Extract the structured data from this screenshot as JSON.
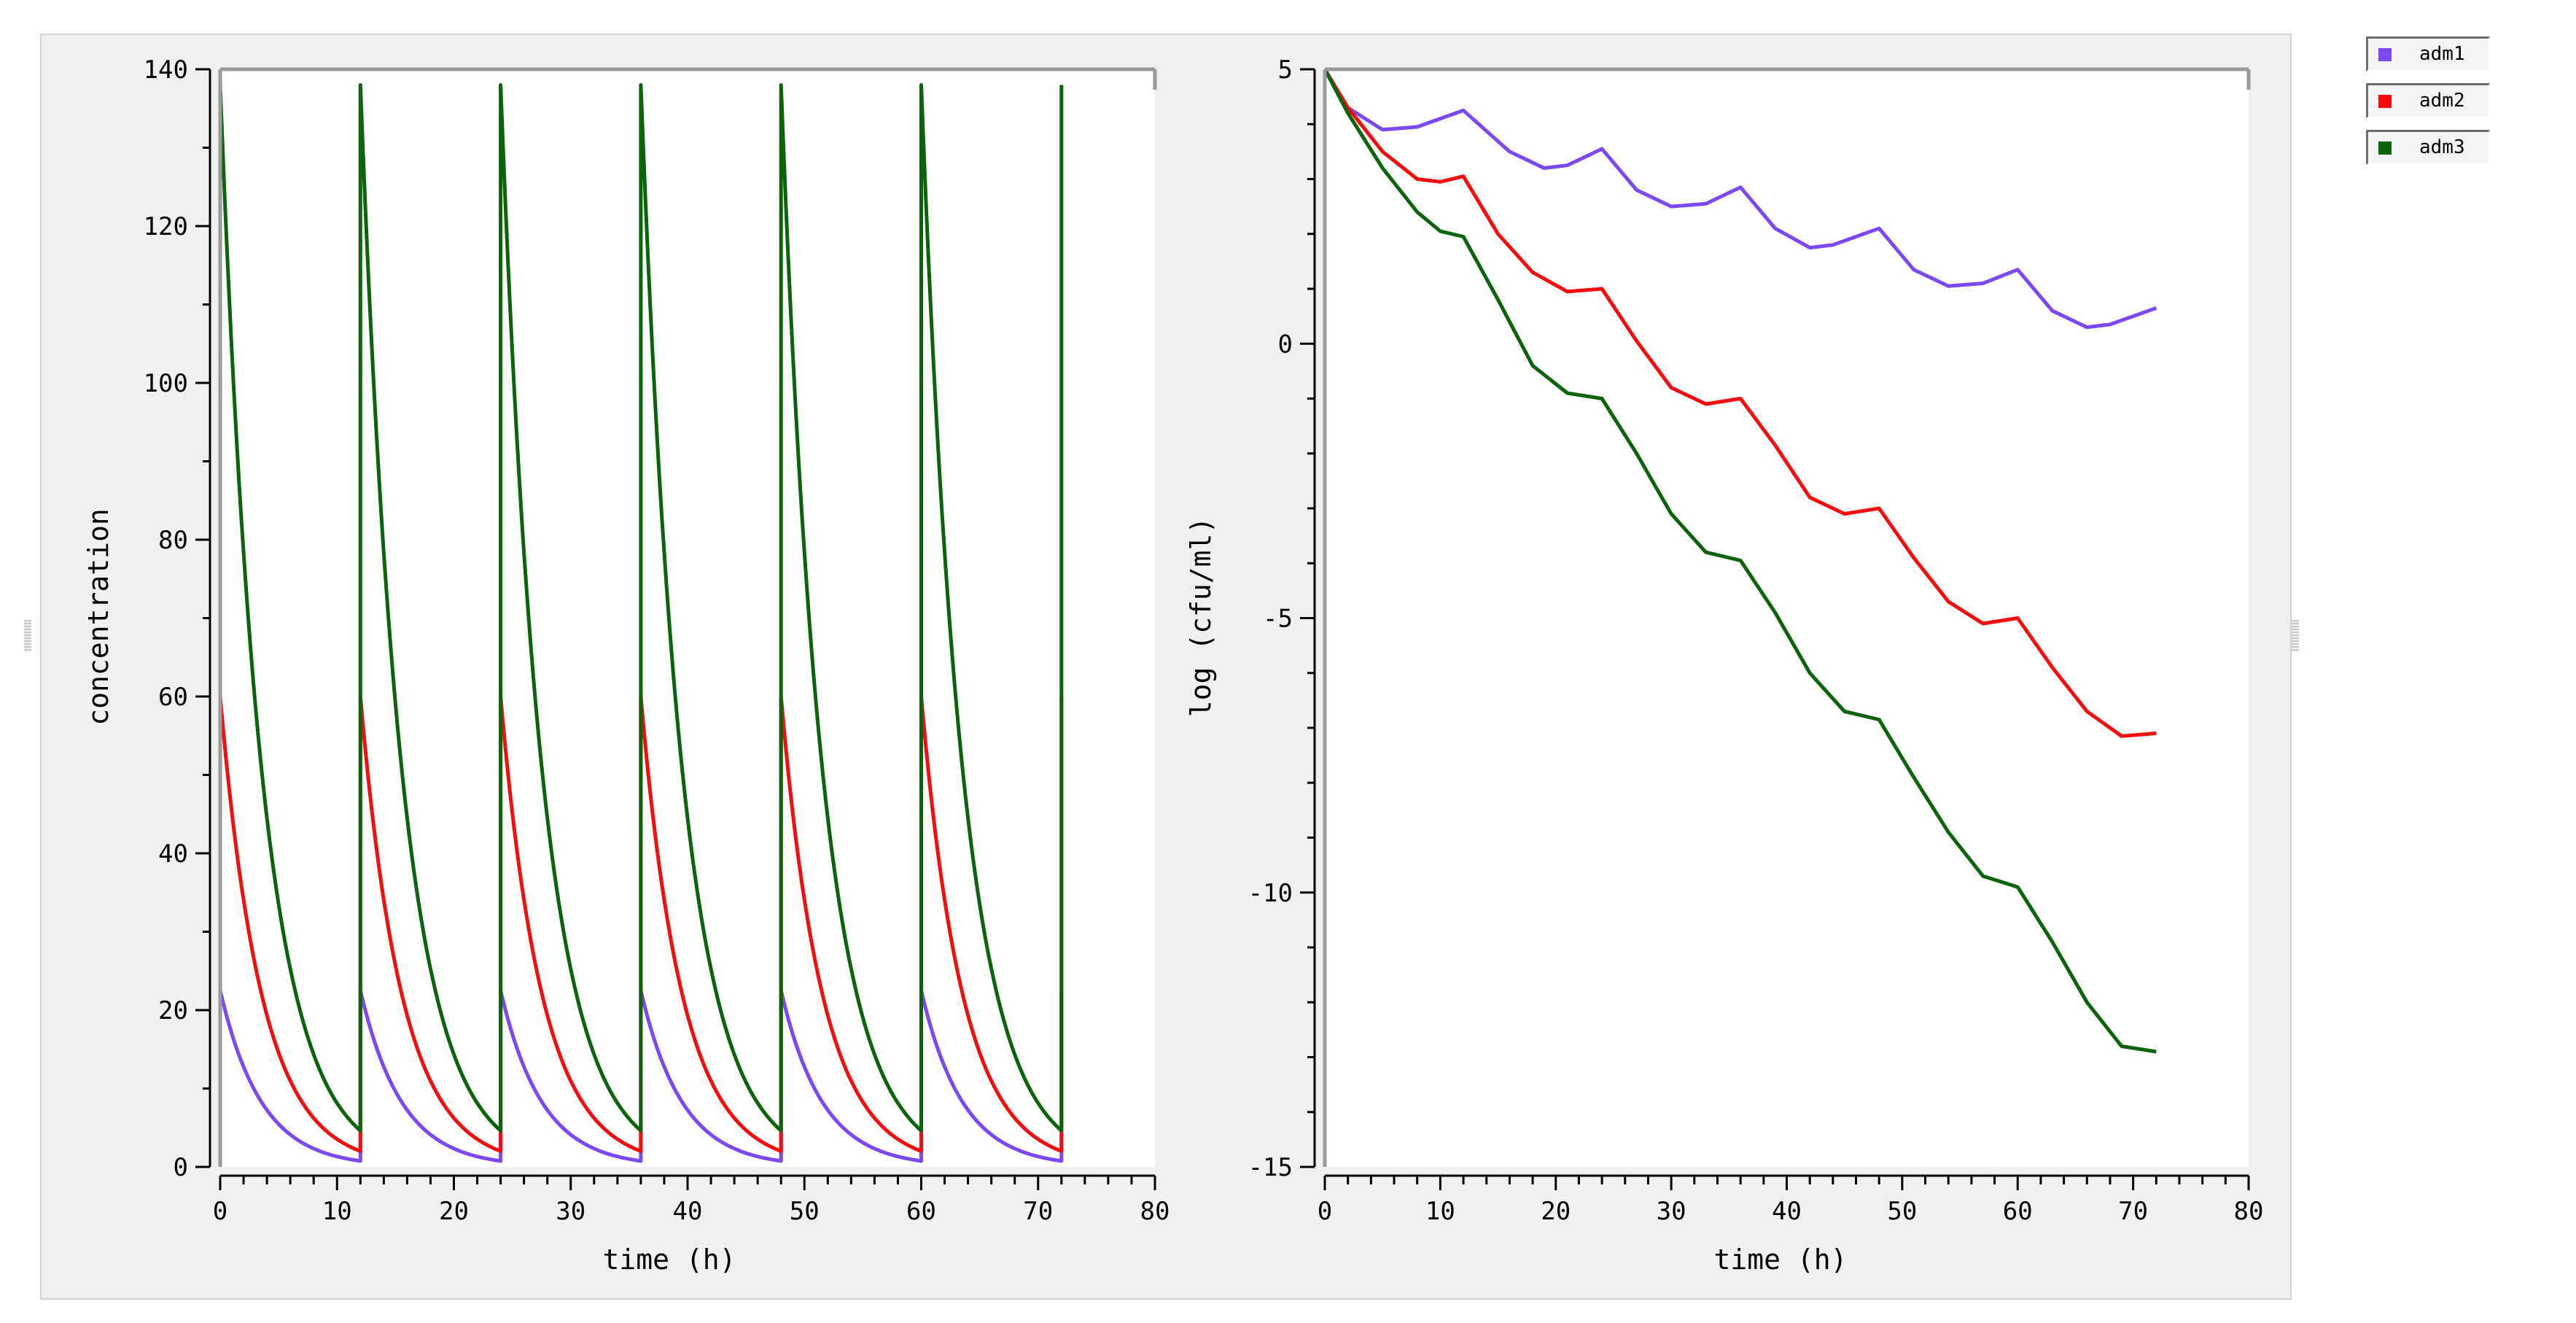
{
  "colors": {
    "adm1": "#7a48f5",
    "adm2": "#f50d0d",
    "adm3": "#0b630b",
    "panel_bg": "#f0f0f0",
    "plot_bg": "#ffffff",
    "frame": "#9a9a9a"
  },
  "legend": {
    "items": [
      {
        "key": "adm1",
        "label": "adm1",
        "color": "#7a48f5"
      },
      {
        "key": "adm2",
        "label": "adm2",
        "color": "#f50d0d"
      },
      {
        "key": "adm3",
        "label": "adm3",
        "color": "#0b630b"
      }
    ]
  },
  "chart_data": [
    {
      "type": "line",
      "title": "",
      "xlabel": "time (h)",
      "ylabel": "concentration",
      "xlim": [
        0,
        80
      ],
      "ylim": [
        0,
        140
      ],
      "xticks": [
        0,
        10,
        20,
        30,
        40,
        50,
        60,
        70,
        80
      ],
      "yticks": [
        0,
        20,
        40,
        60,
        80,
        100,
        120,
        140
      ],
      "grid": false,
      "dosing": {
        "interval_h": 12,
        "doses": 6,
        "end_h": 72,
        "decay_rate_per_h": 0.283
      },
      "series": [
        {
          "name": "adm1",
          "color": "#7a48f5",
          "peak": 22.5,
          "trough": 0.75
        },
        {
          "name": "adm2",
          "color": "#f50d0d",
          "peak": 60,
          "trough": 2
        },
        {
          "name": "adm3",
          "color": "#0b630b",
          "peak": 138,
          "trough": 4.6
        }
      ]
    },
    {
      "type": "line",
      "title": "",
      "xlabel": "time (h)",
      "ylabel": "log (cfu/ml)",
      "xlim": [
        0,
        80
      ],
      "ylim": [
        -15,
        5
      ],
      "xticks": [
        0,
        10,
        20,
        30,
        40,
        50,
        60,
        70,
        80
      ],
      "yticks": [
        -15,
        -10,
        -5,
        0,
        5
      ],
      "grid": false,
      "series": [
        {
          "name": "adm1",
          "color": "#7a48f5",
          "x": [
            0,
            2,
            5,
            8,
            12,
            16,
            19,
            21,
            24,
            27,
            30,
            33,
            36,
            39,
            42,
            44,
            48,
            51,
            54,
            57,
            60,
            63,
            66,
            68,
            70,
            72
          ],
          "y": [
            5,
            4.3,
            3.9,
            3.95,
            4.25,
            3.5,
            3.2,
            3.25,
            3.55,
            2.8,
            2.5,
            2.55,
            2.85,
            2.1,
            1.75,
            1.8,
            2.1,
            1.35,
            1.05,
            1.1,
            1.35,
            0.6,
            0.3,
            0.35,
            0.5,
            0.65
          ]
        },
        {
          "name": "adm2",
          "color": "#f50d0d",
          "x": [
            0,
            2,
            5,
            8,
            10,
            12,
            15,
            18,
            21,
            24,
            27,
            30,
            33,
            36,
            39,
            42,
            45,
            48,
            51,
            54,
            57,
            60,
            63,
            66,
            69,
            72
          ],
          "y": [
            5,
            4.3,
            3.5,
            3.0,
            2.95,
            3.05,
            2.0,
            1.3,
            0.95,
            1.0,
            0.05,
            -0.8,
            -1.1,
            -1.0,
            -1.85,
            -2.8,
            -3.1,
            -3.0,
            -3.9,
            -4.7,
            -5.1,
            -5.0,
            -5.9,
            -6.7,
            -7.15,
            -7.1
          ]
        },
        {
          "name": "adm3",
          "color": "#0b630b",
          "x": [
            0,
            2,
            5,
            8,
            10,
            12,
            15,
            18,
            21,
            24,
            27,
            30,
            33,
            36,
            39,
            42,
            45,
            48,
            51,
            54,
            57,
            60,
            63,
            66,
            69,
            72
          ],
          "y": [
            5,
            4.2,
            3.2,
            2.4,
            2.05,
            1.95,
            0.8,
            -0.4,
            -0.9,
            -1.0,
            -2.0,
            -3.1,
            -3.8,
            -3.95,
            -4.9,
            -6.0,
            -6.7,
            -6.85,
            -7.9,
            -8.9,
            -9.7,
            -9.9,
            -10.9,
            -12.0,
            -12.8,
            -12.9
          ]
        }
      ]
    }
  ]
}
